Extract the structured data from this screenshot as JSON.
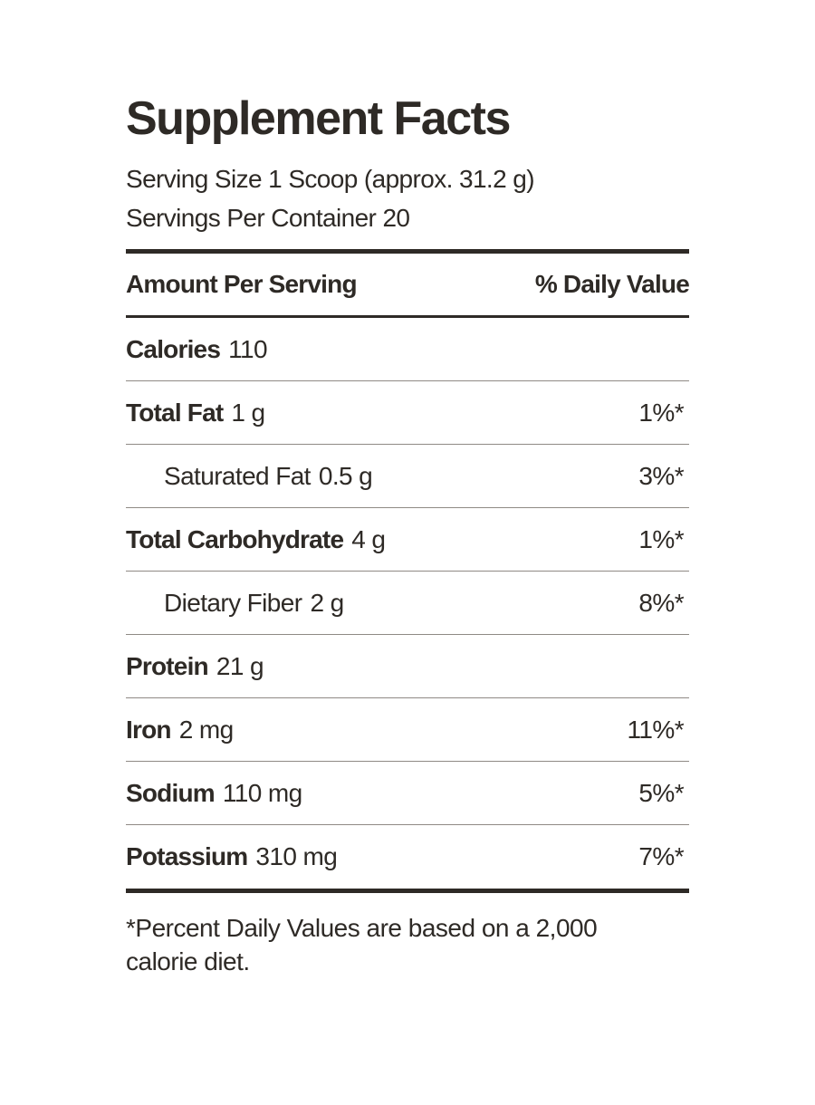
{
  "label": {
    "title": "Supplement Facts",
    "serving_size": "Serving Size 1 Scoop (approx. 31.2 g)",
    "servings_per_container": "Servings Per Container 20",
    "header_left": "Amount Per Serving",
    "header_right": "% Daily Value",
    "rows": [
      {
        "name": "Calories",
        "amount": "110",
        "dv": ""
      },
      {
        "name": "Total Fat",
        "amount": "1 g",
        "dv": "1%*"
      },
      {
        "name": "Saturated Fat",
        "amount": "0.5 g",
        "dv": "3%*"
      },
      {
        "name": "Total Carbohydrate",
        "amount": "4 g",
        "dv": "1%*"
      },
      {
        "name": "Dietary Fiber",
        "amount": "2 g",
        "dv": "8%*"
      },
      {
        "name": "Protein",
        "amount": "21 g",
        "dv": ""
      },
      {
        "name": "Iron",
        "amount": "2 mg",
        "dv": "11%*"
      },
      {
        "name": "Sodium",
        "amount": "110 mg",
        "dv": "5%*"
      },
      {
        "name": "Potassium",
        "amount": "310 mg",
        "dv": "7%*"
      }
    ],
    "footnote": "*Percent Daily Values are based on a 2,000 calorie diet."
  }
}
